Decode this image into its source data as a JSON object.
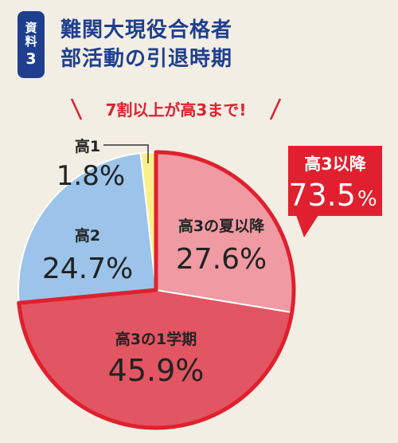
{
  "badge": {
    "label": "資料",
    "number": "3"
  },
  "title": {
    "line1": "難関大現役合格者",
    "line2": "部活動の引退時期"
  },
  "callout": "7割以上が高3まで!",
  "highlight": {
    "label": "高3以降",
    "value": "73.5",
    "unit": "%"
  },
  "colors": {
    "navy": "#1f3f8e",
    "red": "#e0202e",
    "slice_koukou3_1": "#e25562",
    "slice_koukou3_natsu": "#f09aa3",
    "slice_koukou2": "#9cc4ea",
    "slice_koukou1": "#fbef8c"
  },
  "chart_data": {
    "type": "pie",
    "title": "難関大現役合格者 部活動の引退時期",
    "slices": [
      {
        "label": "高1",
        "value": 1.8,
        "display": "1.8%"
      },
      {
        "label": "高3の夏以降",
        "value": 27.6,
        "display": "27.6%"
      },
      {
        "label": "高3の1学期",
        "value": 45.9,
        "display": "45.9%"
      },
      {
        "label": "高2",
        "value": 24.7,
        "display": "24.7%"
      }
    ]
  }
}
